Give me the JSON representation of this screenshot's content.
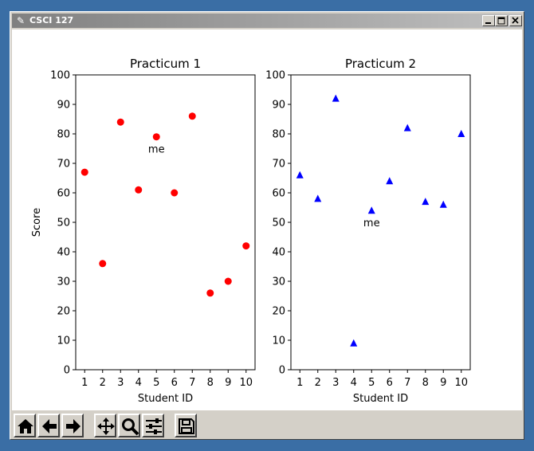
{
  "window": {
    "title": "CSCI 127",
    "icon": "feather-icon"
  },
  "toolbar": {
    "buttons": [
      {
        "name": "home",
        "icon": "home-icon"
      },
      {
        "name": "back",
        "icon": "arrow-left-icon"
      },
      {
        "name": "forward",
        "icon": "arrow-right-icon"
      },
      {
        "name": "pan",
        "icon": "move-icon"
      },
      {
        "name": "zoom",
        "icon": "magnifier-icon"
      },
      {
        "name": "configure",
        "icon": "sliders-icon"
      },
      {
        "name": "save",
        "icon": "floppy-icon"
      }
    ]
  },
  "chart_data": [
    {
      "type": "scatter",
      "title": "Practicum 1",
      "xlabel": "Student ID",
      "ylabel": "Score",
      "xticks": [
        1,
        2,
        3,
        4,
        5,
        6,
        7,
        8,
        9,
        10
      ],
      "yticks": [
        0,
        10,
        20,
        30,
        40,
        50,
        60,
        70,
        80,
        90,
        100
      ],
      "ylim": [
        0,
        100
      ],
      "xlim": [
        0.5,
        10.5
      ],
      "marker": "circle",
      "color": "#ff0000",
      "x": [
        1,
        2,
        3,
        4,
        5,
        6,
        7,
        8,
        9,
        10
      ],
      "y": [
        67,
        36,
        84,
        61,
        79,
        60,
        86,
        26,
        30,
        42
      ],
      "annotation": {
        "text": "me",
        "x": 5,
        "y": 75
      }
    },
    {
      "type": "scatter",
      "title": "Practicum 2",
      "xlabel": "Student ID",
      "ylabel": "",
      "xticks": [
        1,
        2,
        3,
        4,
        5,
        6,
        7,
        8,
        9,
        10
      ],
      "yticks": [
        0,
        10,
        20,
        30,
        40,
        50,
        60,
        70,
        80,
        90,
        100
      ],
      "ylim": [
        0,
        100
      ],
      "xlim": [
        0.5,
        10.5
      ],
      "marker": "triangle",
      "color": "#0000ff",
      "x": [
        1,
        2,
        3,
        4,
        5,
        6,
        7,
        8,
        9,
        10
      ],
      "y": [
        66,
        58,
        92,
        9,
        54,
        64,
        82,
        57,
        56,
        80
      ],
      "annotation": {
        "text": "me",
        "x": 5,
        "y": 50
      }
    }
  ]
}
